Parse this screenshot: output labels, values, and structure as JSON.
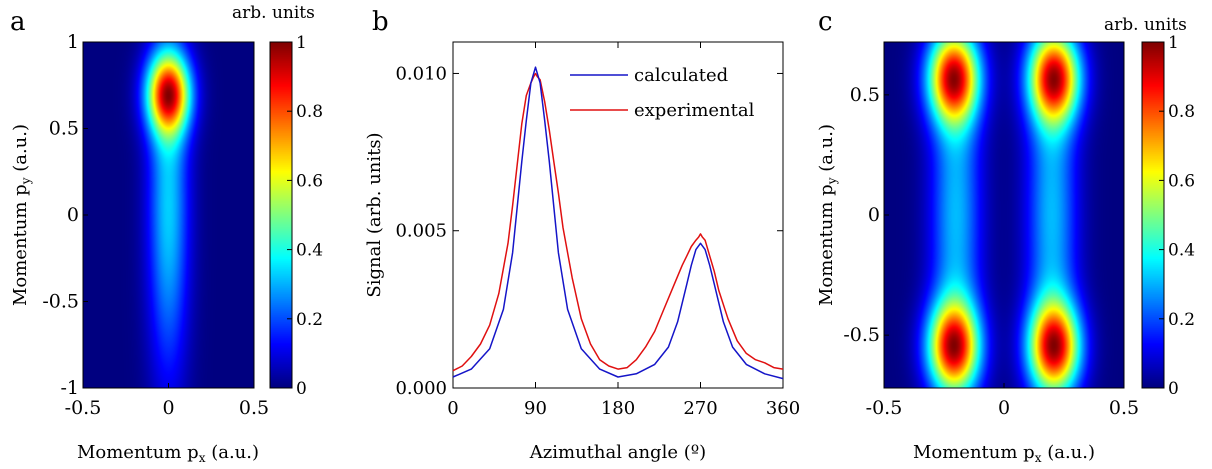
{
  "panels": [
    {
      "letter": "a"
    },
    {
      "letter": "b"
    },
    {
      "letter": "c"
    }
  ],
  "chart_data": [
    {
      "type": "heatmap",
      "panel": "a",
      "xlabel": "Momentum p_x (a.u.)",
      "ylabel": "Momentum p_y (a.u.)",
      "xlim": [
        -0.5,
        0.5
      ],
      "ylim": [
        -1,
        1
      ],
      "xticks": [
        "-0.5",
        "0",
        "0.5"
      ],
      "yticks": [
        "1",
        "0.5",
        "0",
        "-0.5",
        "-1"
      ],
      "colorbar": {
        "label": "arb. units",
        "range": [
          0,
          1
        ],
        "ticks": [
          "1",
          "0.8",
          "0.6",
          "0.4",
          "0.2",
          "0"
        ],
        "colormap": "jet"
      },
      "components": [
        {
          "px": 0.0,
          "py": 0.7,
          "sigma_px": 0.09,
          "sigma_py": 0.16,
          "amplitude": 1.0
        },
        {
          "px": 0.0,
          "py": 0.05,
          "sigma_px": 0.085,
          "sigma_py": 0.7,
          "amplitude": 0.42
        }
      ]
    },
    {
      "type": "line",
      "panel": "b",
      "xlabel": "Azimuthal angle (º)",
      "ylabel": "Signal (arb. units)",
      "xlim": [
        0,
        360
      ],
      "ylim": [
        0,
        0.011
      ],
      "xticks": [
        "0",
        "90",
        "180",
        "270",
        "360"
      ],
      "yticks": [
        "0.000",
        "0.005",
        "0.010"
      ],
      "legend_position": "top-right",
      "series": [
        {
          "name": "calculated",
          "color": "#1515c8",
          "x": [
            0,
            20,
            40,
            55,
            65,
            75,
            80,
            85,
            90,
            95,
            100,
            105,
            115,
            125,
            140,
            160,
            180,
            200,
            220,
            235,
            245,
            255,
            260,
            265,
            270,
            275,
            280,
            285,
            295,
            305,
            320,
            340,
            360
          ],
          "y": [
            0.00035,
            0.0006,
            0.00125,
            0.0025,
            0.0043,
            0.0072,
            0.0085,
            0.0097,
            0.0102,
            0.0097,
            0.0085,
            0.0072,
            0.0043,
            0.0025,
            0.00125,
            0.0006,
            0.00035,
            0.00045,
            0.00075,
            0.0013,
            0.0021,
            0.0033,
            0.0039,
            0.0044,
            0.0046,
            0.0044,
            0.0039,
            0.0033,
            0.0021,
            0.0013,
            0.00075,
            0.00045,
            0.0003
          ]
        },
        {
          "name": "experimental",
          "color": "#e01010",
          "x": [
            0,
            10,
            20,
            30,
            40,
            50,
            60,
            65,
            70,
            75,
            80,
            85,
            88,
            90,
            92,
            95,
            100,
            105,
            110,
            115,
            120,
            130,
            140,
            150,
            160,
            170,
            180,
            190,
            200,
            210,
            220,
            230,
            240,
            250,
            255,
            260,
            265,
            268,
            270,
            272,
            275,
            280,
            285,
            290,
            300,
            310,
            320,
            330,
            340,
            350,
            360
          ],
          "y": [
            0.00055,
            0.0007,
            0.001,
            0.0014,
            0.002,
            0.003,
            0.0046,
            0.0058,
            0.0071,
            0.0084,
            0.0093,
            0.0097,
            0.0099,
            0.01,
            0.0099,
            0.0098,
            0.0091,
            0.0082,
            0.0072,
            0.0062,
            0.0051,
            0.0035,
            0.0022,
            0.0014,
            0.0009,
            0.0007,
            0.0006,
            0.00065,
            0.0009,
            0.0013,
            0.0018,
            0.0025,
            0.0032,
            0.0039,
            0.0042,
            0.0045,
            0.0047,
            0.0048,
            0.0049,
            0.0048,
            0.0047,
            0.0042,
            0.0037,
            0.0031,
            0.0022,
            0.0015,
            0.0011,
            0.0009,
            0.0008,
            0.00065,
            0.0006
          ]
        }
      ]
    },
    {
      "type": "heatmap",
      "panel": "c",
      "xlabel": "Momentum p_x (a.u.)",
      "ylabel": "Momentum p_y (a.u.)",
      "xlim": [
        -0.5,
        0.5
      ],
      "ylim": [
        -0.72,
        0.72
      ],
      "xticks": [
        "-0.5",
        "0",
        "0.5"
      ],
      "yticks": [
        "0.5",
        "0",
        "-0.5"
      ],
      "colorbar": {
        "label": "arb. units",
        "range": [
          0,
          1
        ],
        "ticks": [
          "1",
          "0.8",
          "0.6",
          "0.4",
          "0.2",
          "0"
        ],
        "colormap": "jet"
      },
      "components": [
        {
          "px": -0.21,
          "py": 0.57,
          "sigma_px": 0.075,
          "sigma_py": 0.13,
          "amplitude": 1.0
        },
        {
          "px": 0.21,
          "py": 0.57,
          "sigma_px": 0.075,
          "sigma_py": 0.13,
          "amplitude": 1.0
        },
        {
          "px": -0.21,
          "py": -0.55,
          "sigma_px": 0.075,
          "sigma_py": 0.13,
          "amplitude": 1.0
        },
        {
          "px": 0.21,
          "py": -0.55,
          "sigma_px": 0.075,
          "sigma_py": 0.13,
          "amplitude": 1.0
        },
        {
          "px": -0.2,
          "py": 0.0,
          "sigma_px": 0.075,
          "sigma_py": 0.55,
          "amplitude": 0.38
        },
        {
          "px": 0.2,
          "py": 0.0,
          "sigma_px": 0.075,
          "sigma_py": 0.55,
          "amplitude": 0.38
        }
      ]
    }
  ]
}
